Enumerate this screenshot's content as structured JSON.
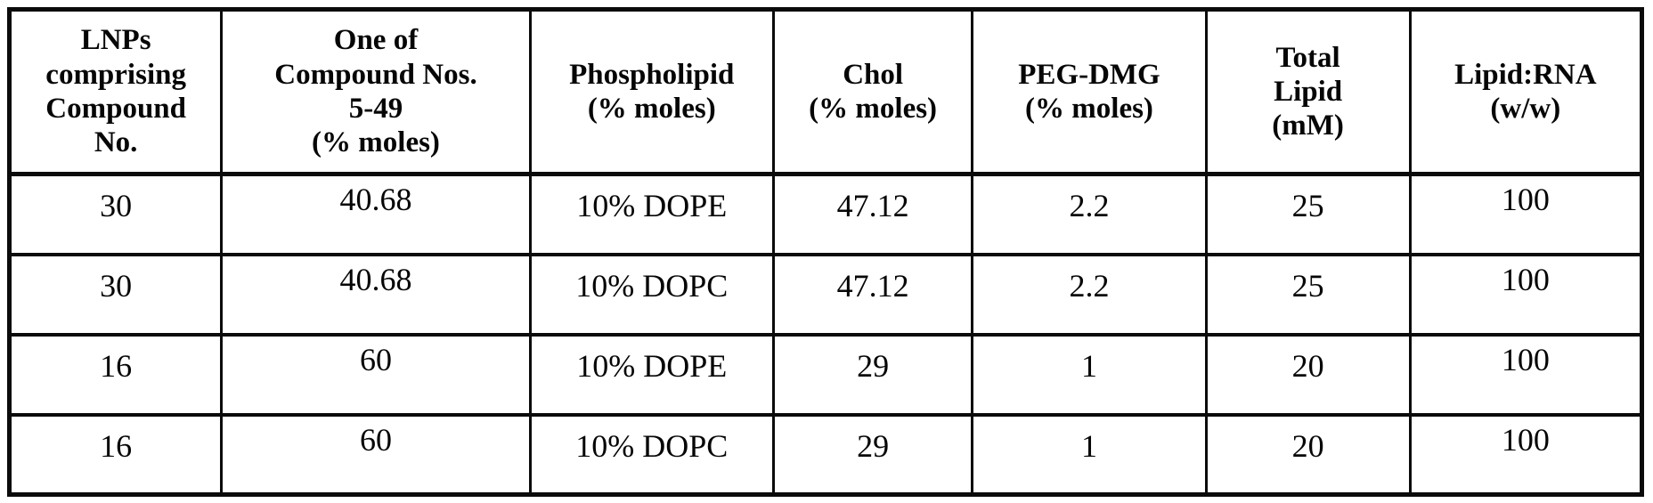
{
  "page": {
    "background_color": "#ffffff",
    "border_color": "#0b0b0b",
    "text_color": "#060606"
  },
  "table": {
    "headers": [
      "LNPs\ncomprising\nCompound\nNo.",
      "One of\nCompound Nos.\n5-49\n(% moles)",
      "Phospholipid\n(% moles)",
      "Chol\n(% moles)",
      "PEG-DMG\n(% moles)",
      "Total\nLipid\n(mM)",
      "Lipid:RNA\n(w/w)"
    ],
    "rows": [
      [
        "30",
        "40.68",
        "10% DOPE",
        "47.12",
        "2.2",
        "25",
        "100"
      ],
      [
        "30",
        "40.68",
        "10% DOPC",
        "47.12",
        "2.2",
        "25",
        "100"
      ],
      [
        "16",
        "60",
        "10% DOPE",
        "29",
        "1",
        "20",
        "100"
      ],
      [
        "16",
        "60",
        "10% DOPC",
        "29",
        "1",
        "20",
        "100"
      ]
    ]
  },
  "chart_data": {
    "type": "table",
    "title": "",
    "columns": [
      "LNPs comprising Compound No.",
      "One of Compound Nos. 5-49 (% moles)",
      "Phospholipid (% moles)",
      "Chol (% moles)",
      "PEG-DMG (% moles)",
      "Total Lipid (mM)",
      "Lipid:RNA (w/w)"
    ],
    "rows": [
      [
        "30",
        "40.68",
        "10% DOPE",
        "47.12",
        "2.2",
        "25",
        "100"
      ],
      [
        "30",
        "40.68",
        "10% DOPC",
        "47.12",
        "2.2",
        "25",
        "100"
      ],
      [
        "16",
        "60",
        "10% DOPE",
        "29",
        "1",
        "20",
        "100"
      ],
      [
        "16",
        "60",
        "10% DOPC",
        "29",
        "1",
        "20",
        "100"
      ]
    ]
  }
}
